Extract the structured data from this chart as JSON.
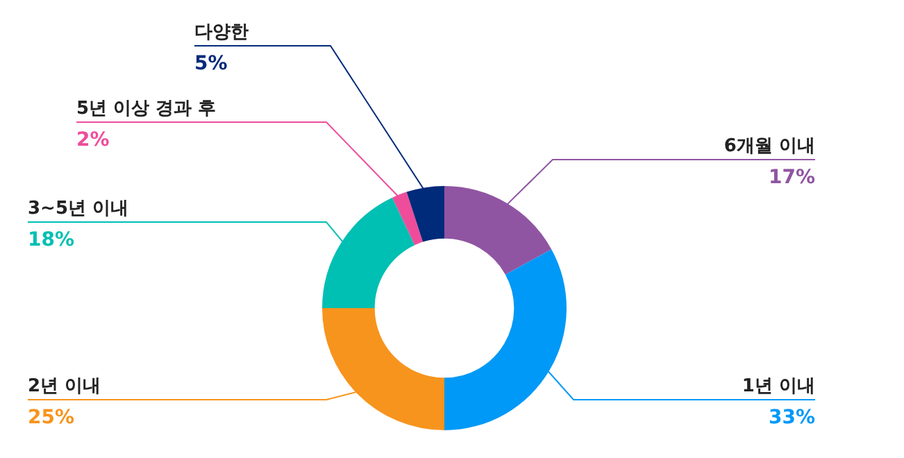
{
  "chart_data": {
    "type": "donut",
    "categories": [
      "6개월 이내",
      "1년 이내",
      "2년 이내",
      "3~5년 이내",
      "5년 이상 경과 후",
      "다양한"
    ],
    "values": [
      17,
      33,
      25,
      18,
      2,
      5
    ],
    "value_labels": [
      "17%",
      "33%",
      "25%",
      "18%",
      "2%",
      "5%"
    ],
    "colors": [
      "#9055a2",
      "#0099f7",
      "#f7941d",
      "#00bfb3",
      "#ee4d9b",
      "#002a7a"
    ],
    "legend": false
  }
}
